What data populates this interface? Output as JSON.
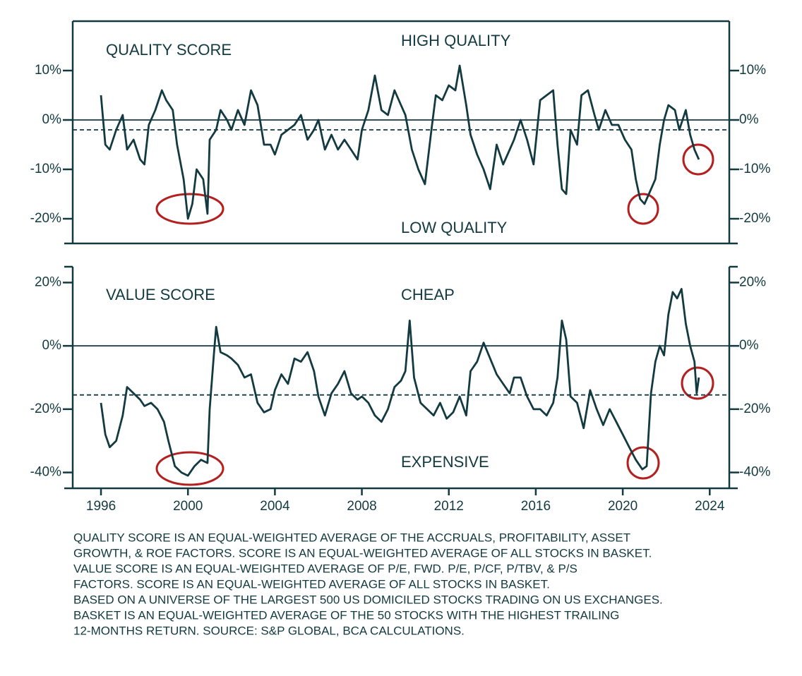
{
  "chart_data": [
    {
      "type": "line",
      "title": "QUALITY SCORE",
      "annotations": [
        "HIGH QUALITY",
        "LOW QUALITY"
      ],
      "color": "#123a40",
      "hline": -2,
      "zeroline": true,
      "xlim": [
        1994.7,
        2024.9
      ],
      "ylim": [
        -25,
        20
      ],
      "yticks": [
        {
          "value": 10,
          "label": "10%"
        },
        {
          "value": 0,
          "label": "0%"
        },
        {
          "value": -10,
          "label": "-10%"
        },
        {
          "value": -20,
          "label": "-20%"
        }
      ],
      "x": [
        1996.0,
        1996.2,
        1996.4,
        1996.7,
        1997.0,
        1997.2,
        1997.5,
        1997.8,
        1998.0,
        1998.2,
        1998.5,
        1998.8,
        1999.0,
        1999.3,
        1999.5,
        1999.8,
        2000.0,
        2000.2,
        2000.4,
        2000.7,
        2000.9,
        2001.0,
        2001.3,
        2001.5,
        2001.8,
        2002.0,
        2002.3,
        2002.6,
        2002.9,
        2003.2,
        2003.5,
        2003.8,
        2004.0,
        2004.3,
        2004.6,
        2004.9,
        2005.2,
        2005.5,
        2005.8,
        2006.0,
        2006.3,
        2006.6,
        2006.9,
        2007.2,
        2007.5,
        2007.8,
        2008.0,
        2008.3,
        2008.6,
        2008.9,
        2009.2,
        2009.5,
        2009.8,
        2010.0,
        2010.3,
        2010.6,
        2010.9,
        2011.2,
        2011.4,
        2011.7,
        2012.0,
        2012.3,
        2012.5,
        2012.8,
        2013.0,
        2013.3,
        2013.6,
        2013.9,
        2014.2,
        2014.5,
        2014.8,
        2015.0,
        2015.3,
        2015.6,
        2015.9,
        2016.2,
        2016.5,
        2016.8,
        2017.0,
        2017.2,
        2017.4,
        2017.6,
        2017.9,
        2018.1,
        2018.4,
        2018.7,
        2018.9,
        2019.2,
        2019.5,
        2019.8,
        2020.1,
        2020.4,
        2020.6,
        2020.8,
        2021.0,
        2021.2,
        2021.5,
        2021.7,
        2021.9,
        2022.1,
        2022.4,
        2022.6,
        2022.9,
        2023.1,
        2023.3,
        2023.5
      ],
      "values": [
        5,
        -5,
        -6,
        -2,
        1,
        -6,
        -4,
        -8,
        -9,
        -1,
        2,
        6,
        4,
        2,
        -5,
        -12,
        -20,
        -17,
        -10,
        -12,
        -19,
        -4,
        -2,
        2,
        0,
        -2,
        2,
        -1,
        6,
        3,
        -5,
        -5,
        -7,
        -3,
        -2,
        -1,
        1,
        -4,
        -2,
        0,
        -6,
        -3,
        -6,
        -4,
        -6,
        -8,
        -2,
        2,
        9,
        2,
        1,
        6,
        3,
        1,
        -6,
        -10,
        -13,
        -2,
        5,
        4,
        7,
        6,
        11,
        3,
        -3,
        -7,
        -10,
        -14,
        -5,
        -9,
        -6,
        -4,
        0,
        -4,
        -9,
        4,
        5,
        6,
        -5,
        -14,
        -15,
        -2,
        -5,
        5,
        6,
        1,
        -2,
        2,
        -1,
        -1,
        -4,
        -6,
        -12,
        -16,
        -17,
        -15,
        -12,
        -5,
        0,
        3,
        2,
        -2,
        2,
        -3,
        -6,
        -8
      ]
    },
    {
      "type": "line",
      "title": "VALUE SCORE",
      "annotations": [
        "CHEAP",
        "EXPENSIVE"
      ],
      "color": "#123a40",
      "hline": -15.5,
      "zeroline": true,
      "xlim": [
        1994.7,
        2024.9
      ],
      "ylim": [
        -45,
        25
      ],
      "xticks": [
        1996,
        2000,
        2004,
        2008,
        2012,
        2016,
        2020,
        2024
      ],
      "yticks": [
        {
          "value": 20,
          "label": "20%"
        },
        {
          "value": 0,
          "label": "0%"
        },
        {
          "value": -20,
          "label": "-20%"
        },
        {
          "value": -40,
          "label": "-40%"
        }
      ],
      "x": [
        1996.0,
        1996.2,
        1996.4,
        1996.7,
        1997.0,
        1997.2,
        1997.5,
        1997.8,
        1998.0,
        1998.3,
        1998.6,
        1998.9,
        1999.1,
        1999.4,
        1999.7,
        2000.0,
        2000.3,
        2000.6,
        2000.9,
        2001.0,
        2001.2,
        2001.3,
        2001.5,
        2001.8,
        2002.0,
        2002.3,
        2002.6,
        2002.9,
        2003.2,
        2003.5,
        2003.8,
        2004.0,
        2004.3,
        2004.6,
        2004.9,
        2005.2,
        2005.5,
        2005.8,
        2006.0,
        2006.3,
        2006.6,
        2006.9,
        2007.2,
        2007.5,
        2007.8,
        2008.0,
        2008.3,
        2008.6,
        2008.9,
        2009.2,
        2009.5,
        2009.8,
        2010.0,
        2010.2,
        2010.4,
        2010.7,
        2011.0,
        2011.3,
        2011.6,
        2011.9,
        2012.2,
        2012.5,
        2012.8,
        2013.0,
        2013.3,
        2013.6,
        2013.9,
        2014.2,
        2014.5,
        2014.8,
        2015.0,
        2015.3,
        2015.6,
        2015.9,
        2016.2,
        2016.5,
        2016.8,
        2017.0,
        2017.2,
        2017.4,
        2017.6,
        2017.9,
        2018.2,
        2018.5,
        2018.8,
        2019.1,
        2019.4,
        2019.7,
        2020.0,
        2020.3,
        2020.6,
        2020.9,
        2021.1,
        2021.3,
        2021.5,
        2021.7,
        2021.9,
        2022.1,
        2022.3,
        2022.5,
        2022.7,
        2022.9,
        2023.1,
        2023.3,
        2023.4,
        2023.5
      ],
      "values": [
        -18,
        -28,
        -32,
        -30,
        -22,
        -13,
        -15,
        -17,
        -19,
        -18,
        -20,
        -24,
        -30,
        -38,
        -40,
        -41,
        -38,
        -36,
        -37,
        -20,
        -2,
        6,
        -2,
        -3,
        -4,
        -6,
        -10,
        -9,
        -18,
        -21,
        -20,
        -14,
        -9,
        -12,
        -4,
        -5,
        -2,
        -8,
        -16,
        -22,
        -15,
        -12,
        -8,
        -15,
        -17,
        -16,
        -18,
        -22,
        -24,
        -20,
        -13,
        -11,
        -8,
        8,
        -10,
        -18,
        -20,
        -22,
        -18,
        -23,
        -21,
        -16,
        -22,
        -8,
        -5,
        1,
        -4,
        -9,
        -12,
        -15,
        -10,
        -10,
        -16,
        -20,
        -20,
        -22,
        -18,
        -10,
        8,
        2,
        -16,
        -18,
        -26,
        -14,
        -20,
        -25,
        -20,
        -24,
        -28,
        -32,
        -36,
        -39,
        -38,
        -15,
        -5,
        0,
        -3,
        10,
        17,
        15,
        18,
        7,
        0,
        -5,
        -15,
        -10
      ]
    }
  ],
  "footnote": [
    "QUALITY SCORE IS AN EQUAL-WEIGHTED AVERAGE OF THE ACCRUALS, PROFITABILITY, ASSET",
    "GROWTH, & ROE FACTORS. SCORE IS AN EQUAL-WEIGHTED AVERAGE OF ALL STOCKS IN BASKET.",
    "VALUE SCORE IS AN EQUAL-WEIGHTED AVERAGE OF P/E, FWD. P/E, P/CF, P/TBV, & P/S",
    "FACTORS. SCORE IS AN EQUAL-WEIGHTED AVERAGE OF ALL STOCKS IN BASKET.",
    "BASED ON A UNIVERSE OF THE LARGEST 500 US DOMICILED STOCKS TRADING ON US EXCHANGES.",
    "BASKET IS AN EQUAL-WEIGHTED AVERAGE OF THE 50 STOCKS WITH THE HIGHEST TRAILING",
    "12-MONTHS RETURN. SOURCE: S&P GLOBAL, BCA CALCULATIONS."
  ]
}
